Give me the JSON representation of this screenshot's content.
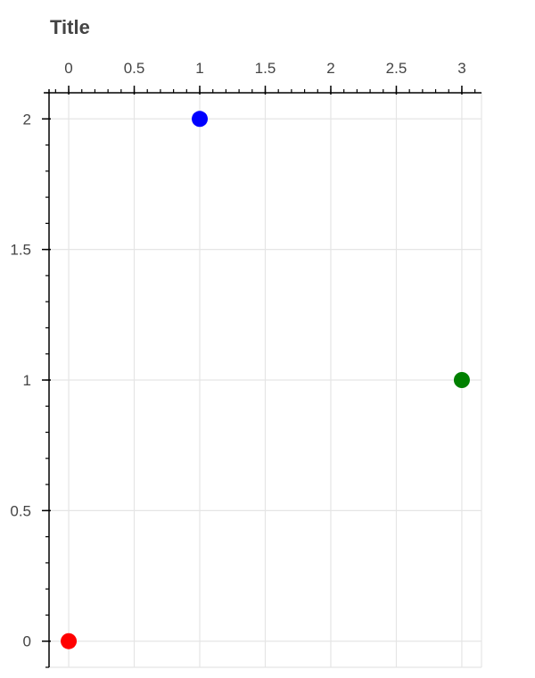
{
  "chart_data": {
    "type": "scatter",
    "title": "Title",
    "xlabel": "",
    "ylabel": "",
    "x_axis_position": "top",
    "xlim": [
      -0.15,
      3.15
    ],
    "ylim": [
      -0.1,
      2.1
    ],
    "x_ticks": [
      0,
      0.5,
      1,
      1.5,
      2,
      2.5,
      3
    ],
    "x_tick_labels": [
      "0",
      "0.5",
      "1",
      "1.5",
      "2",
      "2.5",
      "3"
    ],
    "y_ticks": [
      0,
      0.5,
      1,
      1.5,
      2
    ],
    "y_tick_labels": [
      "0",
      "0.5",
      "1",
      "1.5",
      "2"
    ],
    "grid": true,
    "points": [
      {
        "x": 0,
        "y": 0,
        "color": "#ff0000"
      },
      {
        "x": 1,
        "y": 2,
        "color": "#0000ff"
      },
      {
        "x": 3,
        "y": 1,
        "color": "#008000"
      }
    ]
  }
}
